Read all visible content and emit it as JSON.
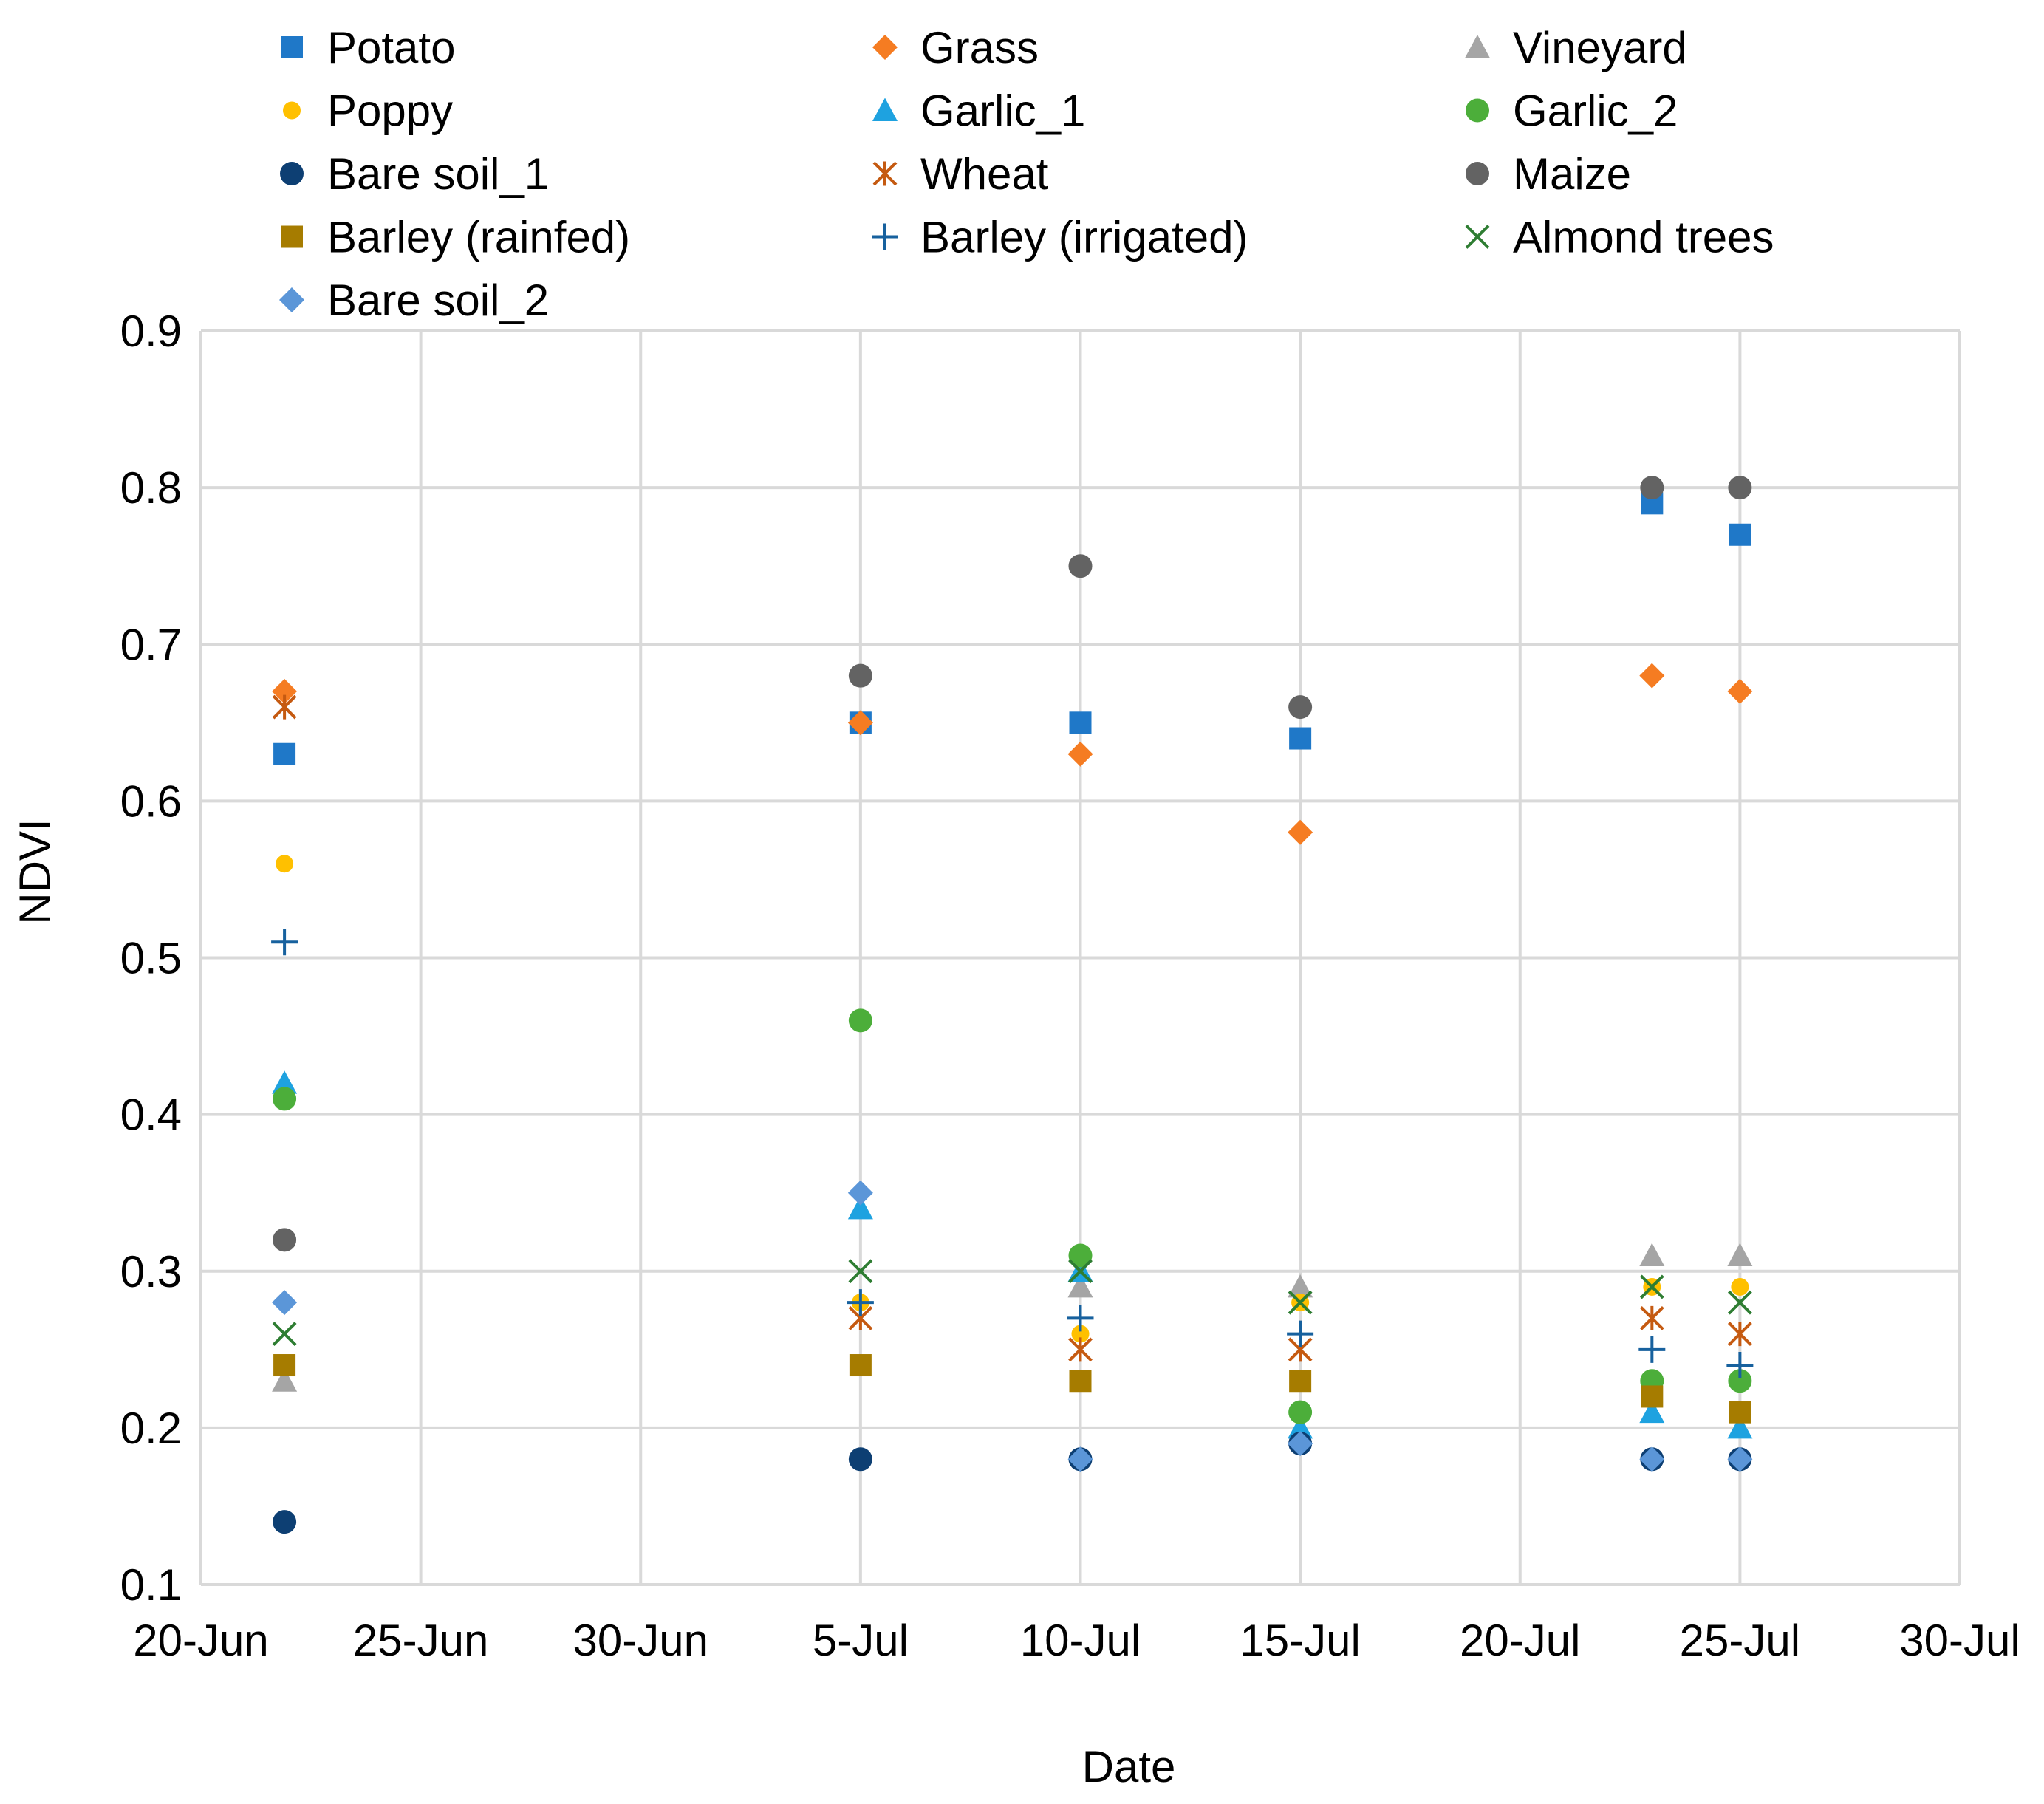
{
  "chart_data": {
    "type": "scatter",
    "title": "",
    "xlabel": "Date",
    "ylabel": "NDVI",
    "ylim": [
      0.1,
      0.9
    ],
    "yticks": [
      0.1,
      0.2,
      0.3,
      0.4,
      0.5,
      0.6,
      0.7,
      0.8,
      0.9
    ],
    "xlim_day": [
      0,
      40
    ],
    "xticks": [
      {
        "day": 0,
        "label": "20-Jun"
      },
      {
        "day": 5,
        "label": "25-Jun"
      },
      {
        "day": 10,
        "label": "30-Jun"
      },
      {
        "day": 15,
        "label": "5-Jul"
      },
      {
        "day": 20,
        "label": "10-Jul"
      },
      {
        "day": 25,
        "label": "15-Jul"
      },
      {
        "day": 30,
        "label": "20-Jul"
      },
      {
        "day": 35,
        "label": "25-Jul"
      },
      {
        "day": 40,
        "label": "30-Jul"
      }
    ],
    "x_day_note": "x values are days after 20-Jun",
    "grid": true,
    "legend_position": "top",
    "series": [
      {
        "name": "Potato",
        "marker": "square",
        "color": "#1f78c8",
        "points": [
          [
            1.9,
            0.63
          ],
          [
            15,
            0.65
          ],
          [
            20,
            0.65
          ],
          [
            25,
            0.64
          ],
          [
            33,
            0.79
          ],
          [
            35,
            0.77
          ]
        ]
      },
      {
        "name": "Grass",
        "marker": "diamond",
        "color": "#f57c22",
        "points": [
          [
            1.9,
            0.67
          ],
          [
            15,
            0.65
          ],
          [
            20,
            0.63
          ],
          [
            25,
            0.58
          ],
          [
            33,
            0.68
          ],
          [
            35,
            0.67
          ]
        ]
      },
      {
        "name": "Vineyard",
        "marker": "triangle",
        "color": "#a5a5a5",
        "points": [
          [
            1.9,
            0.23
          ],
          [
            20,
            0.29
          ],
          [
            25,
            0.29
          ],
          [
            33,
            0.31
          ],
          [
            35,
            0.31
          ]
        ]
      },
      {
        "name": "Poppy",
        "marker": "circle-small",
        "color": "#ffc000",
        "points": [
          [
            1.9,
            0.56
          ],
          [
            15,
            0.28
          ],
          [
            20,
            0.26
          ],
          [
            25,
            0.28
          ],
          [
            33,
            0.29
          ],
          [
            35,
            0.29
          ]
        ]
      },
      {
        "name": "Garlic_1",
        "marker": "triangle",
        "color": "#1ea2e0",
        "points": [
          [
            1.9,
            0.42
          ],
          [
            15,
            0.34
          ],
          [
            20,
            0.3
          ],
          [
            25,
            0.2
          ],
          [
            33,
            0.21
          ],
          [
            35,
            0.2
          ]
        ]
      },
      {
        "name": "Garlic_2",
        "marker": "circle",
        "color": "#4cae3a",
        "points": [
          [
            1.9,
            0.41
          ],
          [
            15,
            0.46
          ],
          [
            20,
            0.31
          ],
          [
            25,
            0.21
          ],
          [
            33,
            0.23
          ],
          [
            35,
            0.23
          ]
        ]
      },
      {
        "name": "Bare soil_1",
        "marker": "circle",
        "color": "#0d3f73",
        "points": [
          [
            1.9,
            0.14
          ],
          [
            15,
            0.18
          ],
          [
            20,
            0.18
          ],
          [
            25,
            0.19
          ],
          [
            33,
            0.18
          ],
          [
            35,
            0.18
          ]
        ]
      },
      {
        "name": "Wheat",
        "marker": "star",
        "color": "#c55a11",
        "points": [
          [
            1.9,
            0.66
          ],
          [
            15,
            0.27
          ],
          [
            20,
            0.25
          ],
          [
            25,
            0.25
          ],
          [
            33,
            0.27
          ],
          [
            35,
            0.26
          ]
        ]
      },
      {
        "name": "Maize",
        "marker": "circle",
        "color": "#636363",
        "points": [
          [
            1.9,
            0.32
          ],
          [
            15,
            0.68
          ],
          [
            20,
            0.75
          ],
          [
            25,
            0.66
          ],
          [
            33,
            0.8
          ],
          [
            35,
            0.8
          ]
        ]
      },
      {
        "name": "Barley (rainfed)",
        "marker": "square",
        "color": "#a67c00",
        "points": [
          [
            1.9,
            0.24
          ],
          [
            15,
            0.24
          ],
          [
            20,
            0.23
          ],
          [
            25,
            0.23
          ],
          [
            33,
            0.22
          ],
          [
            35,
            0.21
          ]
        ]
      },
      {
        "name": "Barley (irrigated)",
        "marker": "plus",
        "color": "#17619e",
        "points": [
          [
            1.9,
            0.51
          ],
          [
            15,
            0.28
          ],
          [
            20,
            0.27
          ],
          [
            25,
            0.26
          ],
          [
            33,
            0.25
          ],
          [
            35,
            0.24
          ]
        ]
      },
      {
        "name": "Almond trees",
        "marker": "x",
        "color": "#2e7d32",
        "points": [
          [
            1.9,
            0.26
          ],
          [
            15,
            0.3
          ],
          [
            20,
            0.3
          ],
          [
            25,
            0.28
          ],
          [
            33,
            0.29
          ],
          [
            35,
            0.28
          ]
        ]
      },
      {
        "name": "Bare soil_2",
        "marker": "diamond",
        "color": "#5b96d8",
        "points": [
          [
            1.9,
            0.28
          ],
          [
            15,
            0.35
          ],
          [
            20,
            0.18
          ],
          [
            25,
            0.19
          ],
          [
            33,
            0.18
          ],
          [
            35,
            0.18
          ]
        ]
      }
    ]
  }
}
